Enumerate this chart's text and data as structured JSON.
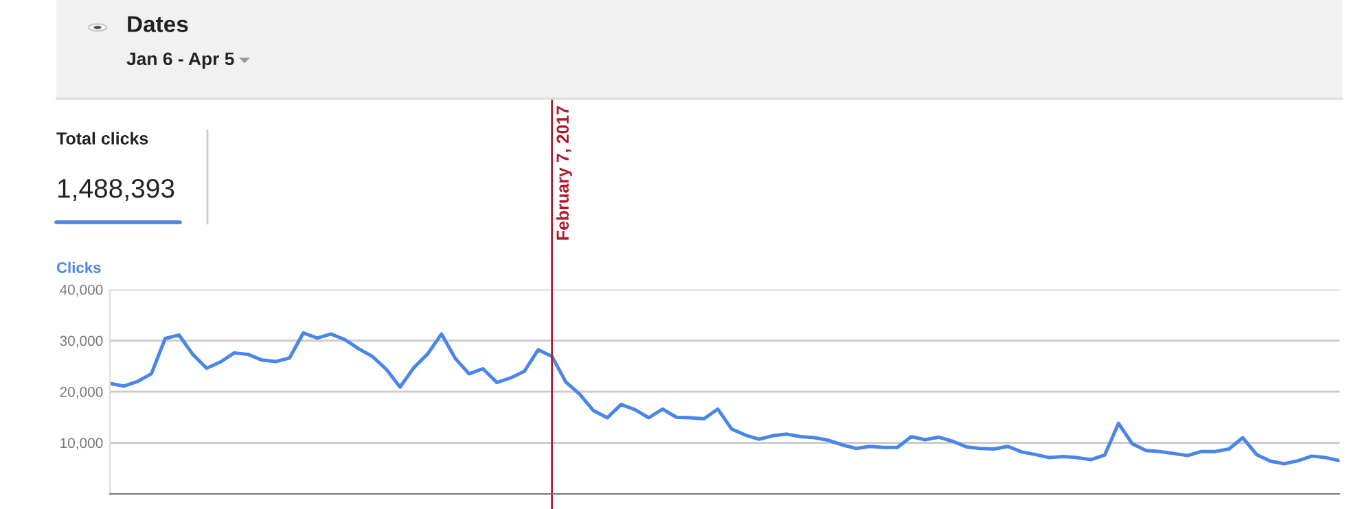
{
  "chart_data": {
    "type": "line",
    "title": "Dates",
    "subtitle": "Jan 6 - Apr 5",
    "ylabel": "Clicks",
    "annotations": [
      "Total clicks",
      "1,488,393",
      "February 7, 2017"
    ],
    "categories": [
      null,
      null,
      null,
      null,
      null,
      null,
      null,
      null,
      null,
      null,
      null,
      null,
      null,
      null,
      null,
      null,
      null,
      null,
      null,
      null,
      null,
      null,
      null,
      null,
      null,
      null,
      null,
      null,
      null,
      null,
      null,
      null,
      null,
      null,
      null,
      null,
      null,
      null,
      null,
      null,
      null,
      null,
      null,
      null,
      null,
      null,
      null,
      null,
      null,
      null,
      null,
      null,
      null,
      null,
      null,
      null,
      null,
      null,
      null,
      null,
      null,
      null,
      null,
      null,
      null,
      null,
      null,
      null,
      null,
      null,
      null,
      null,
      null,
      null,
      null,
      null,
      null,
      null,
      null,
      null,
      null,
      null,
      null,
      null,
      null,
      null,
      null,
      null,
      null,
      null
    ],
    "series": [
      {
        "color": "#4a86e8",
        "values": [
          21600,
          21100,
          22000,
          23500,
          30400,
          31100,
          27300,
          24600,
          25800,
          27600,
          27300,
          26200,
          25900,
          26600,
          31500,
          30500,
          31300,
          30200,
          28400,
          26900,
          24400,
          20900,
          24700,
          27400,
          31300,
          26500,
          23500,
          24500,
          21800,
          22700,
          24000,
          28200,
          26900,
          21900,
          19500,
          16300,
          14900,
          17500,
          16500,
          14900,
          16600,
          15000,
          14900,
          14700,
          16600,
          12700,
          11500,
          10700,
          11400,
          11700,
          11200,
          11000,
          10500,
          9600,
          8900,
          9300,
          9100,
          9100,
          11200,
          10600,
          11100,
          10300,
          9200,
          8900,
          8800,
          9300,
          8200,
          7700,
          7100,
          7300,
          7100,
          6700,
          7600,
          13800,
          9800,
          8500,
          8300,
          7900,
          7500,
          8300,
          8300,
          8800,
          11000,
          7700,
          6400,
          5900,
          6500,
          7400,
          7100,
          6500
        ]
      }
    ],
    "ylim": [
      0,
      40000
    ],
    "yticks": [
      {
        "value": 10000,
        "label": "10,000"
      },
      {
        "value": 20000,
        "label": "20,000"
      },
      {
        "value": 30000,
        "label": "30,000"
      },
      {
        "value": 40000,
        "label": "40,000"
      }
    ],
    "tick_labels": "y",
    "grid": "y",
    "legend": false,
    "marker": "none",
    "line_style": "solid"
  }
}
